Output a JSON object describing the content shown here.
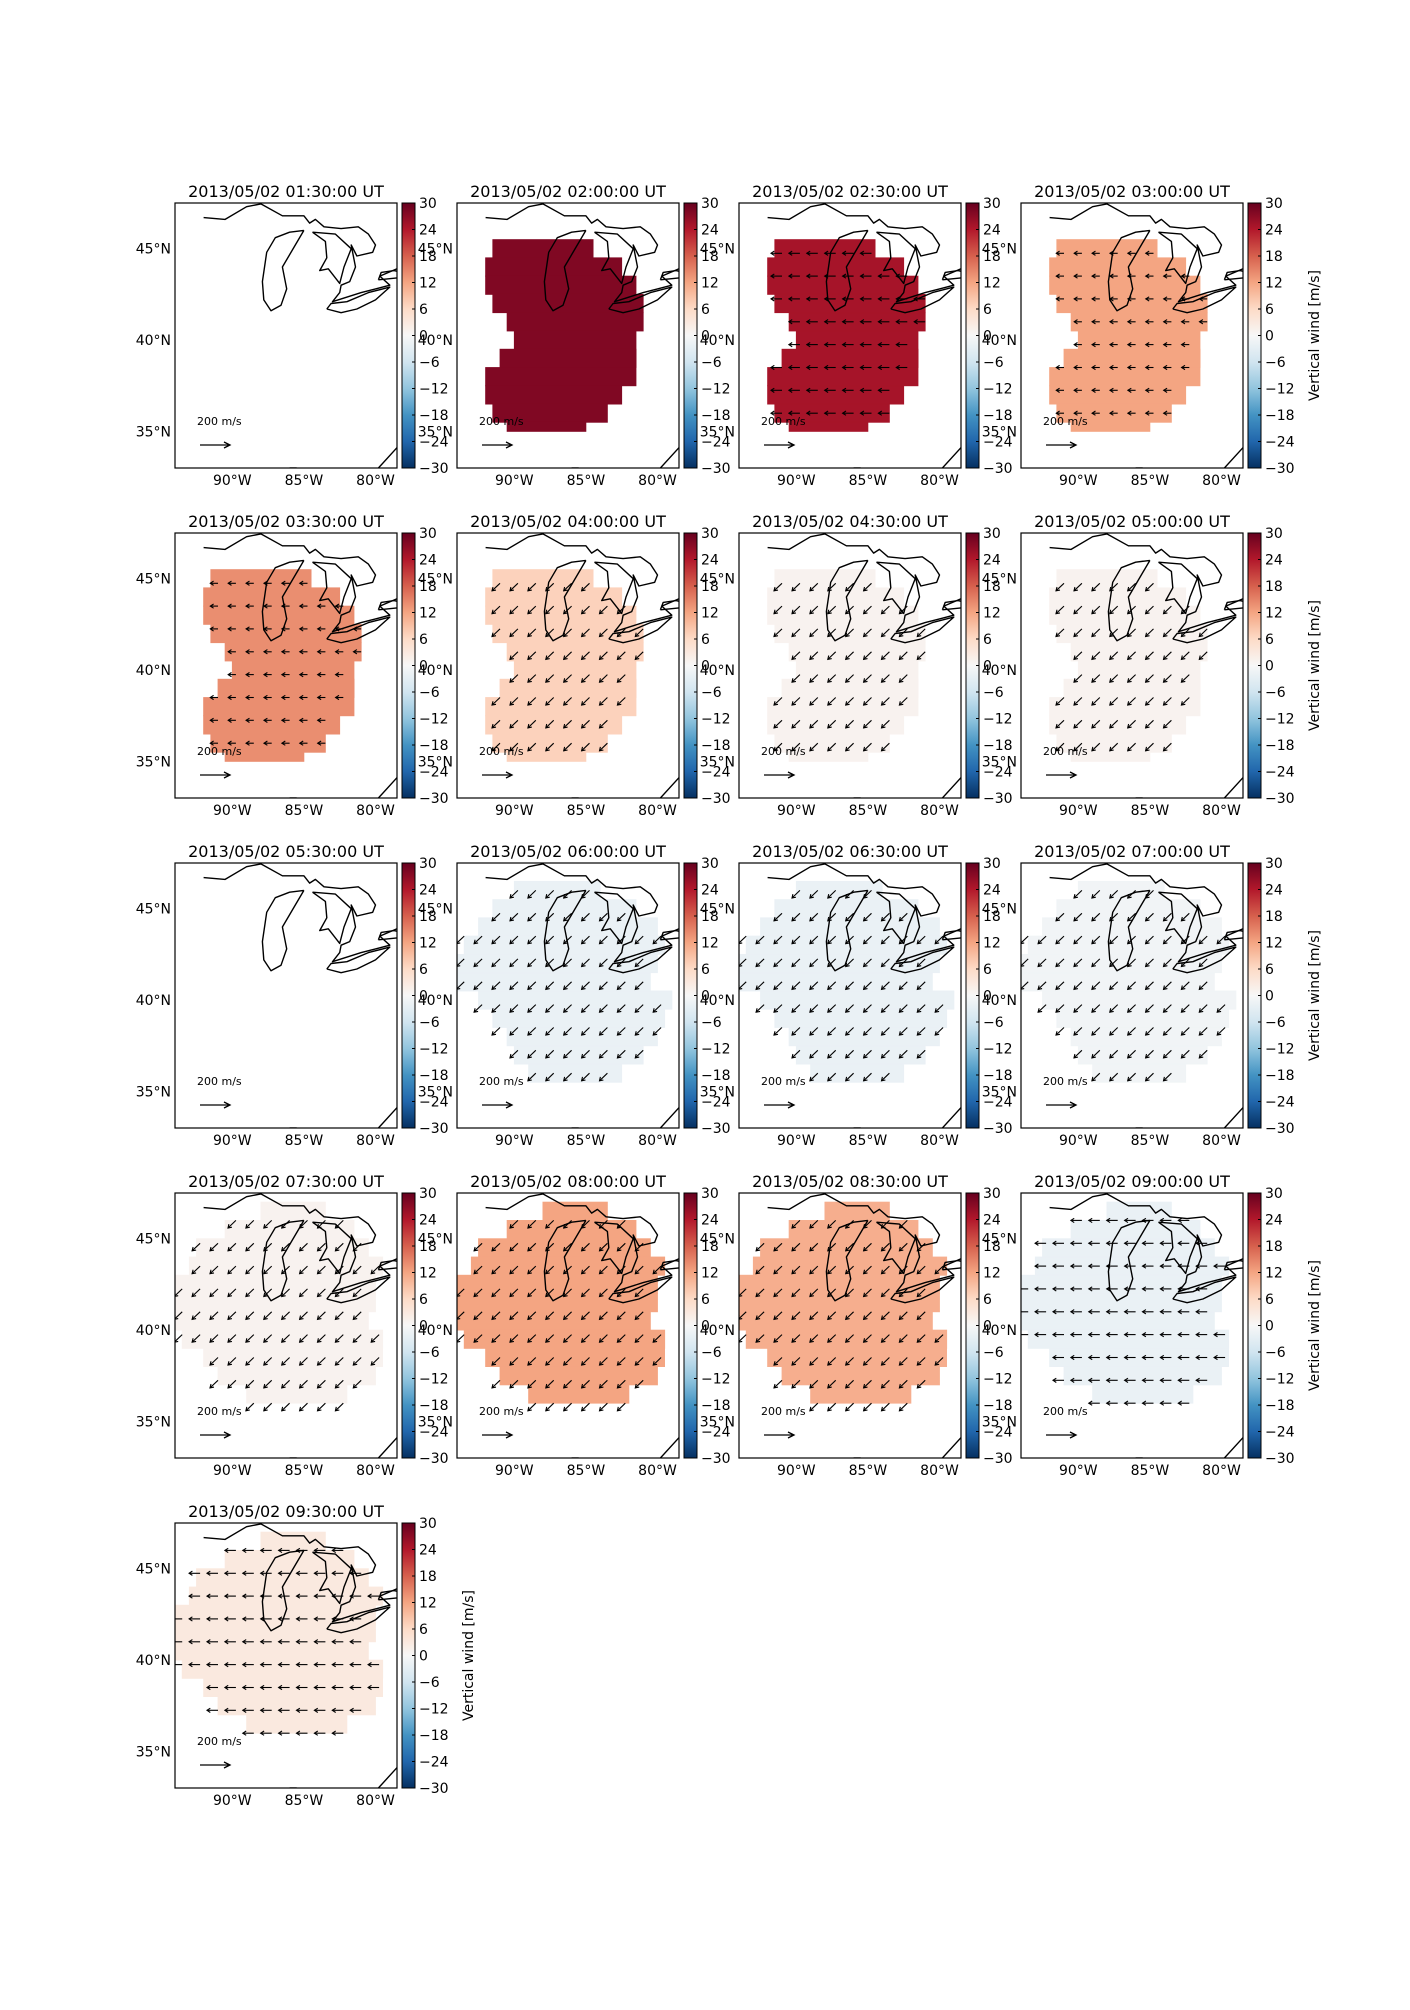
{
  "figure": {
    "colorbar_label": "Vertical wind [m/s]",
    "colorbar_ticks": [
      "30",
      "24",
      "18",
      "12",
      "6",
      "0",
      "−6",
      "−12",
      "−18",
      "−24",
      "−30"
    ],
    "lat_ticks": [
      "45°N",
      "40°N",
      "35°N"
    ],
    "lon_ticks": [
      "90°W",
      "85°W",
      "80°W"
    ],
    "reference_arrow_label": "200 m/s",
    "colormap": "RdBu_r",
    "colors": {
      "max": "#a50f26",
      "zero": "#f7f7f7",
      "min": "#053061"
    }
  },
  "chart_data": [
    {
      "type": "heatmap",
      "title": "2013/05/02 01:30:00 UT",
      "vertical_wind": null,
      "region": "none",
      "arrows": "none",
      "colorbar_label": ""
    },
    {
      "type": "heatmap",
      "title": "2013/05/02 02:00:00 UT",
      "vertical_wind": 28,
      "region": "small",
      "arrows": "none",
      "colorbar_label": ""
    },
    {
      "type": "heatmap",
      "title": "2013/05/02 02:30:00 UT",
      "vertical_wind": 25,
      "region": "small",
      "arrows": "west",
      "colorbar_label": ""
    },
    {
      "type": "heatmap",
      "title": "2013/05/02 03:00:00 UT",
      "vertical_wind": 12,
      "region": "small",
      "arrows": "west-short",
      "colorbar_label": "Vertical wind [m/s]"
    },
    {
      "type": "heatmap",
      "title": "2013/05/02 03:30:00 UT",
      "vertical_wind": 14,
      "region": "small",
      "arrows": "west-short",
      "colorbar_label": ""
    },
    {
      "type": "heatmap",
      "title": "2013/05/02 04:00:00 UT",
      "vertical_wind": 7,
      "region": "small",
      "arrows": "southwest",
      "colorbar_label": ""
    },
    {
      "type": "heatmap",
      "title": "2013/05/02 04:30:00 UT",
      "vertical_wind": 1,
      "region": "small",
      "arrows": "southwest",
      "colorbar_label": ""
    },
    {
      "type": "heatmap",
      "title": "2013/05/02 05:00:00 UT",
      "vertical_wind": 1,
      "region": "small",
      "arrows": "southwest",
      "colorbar_label": "Vertical wind [m/s]"
    },
    {
      "type": "heatmap",
      "title": "2013/05/02 05:30:00 UT",
      "vertical_wind": null,
      "region": "none",
      "arrows": "none",
      "colorbar_label": ""
    },
    {
      "type": "heatmap",
      "title": "2013/05/02 06:00:00 UT",
      "vertical_wind": -2,
      "region": "large",
      "arrows": "southwest",
      "colorbar_label": ""
    },
    {
      "type": "heatmap",
      "title": "2013/05/02 06:30:00 UT",
      "vertical_wind": -2,
      "region": "large",
      "arrows": "southwest",
      "colorbar_label": ""
    },
    {
      "type": "heatmap",
      "title": "2013/05/02 07:00:00 UT",
      "vertical_wind": -1,
      "region": "large",
      "arrows": "southwest",
      "colorbar_label": "Vertical wind [m/s]"
    },
    {
      "type": "heatmap",
      "title": "2013/05/02 07:30:00 UT",
      "vertical_wind": 1,
      "region": "wide",
      "arrows": "southwest",
      "colorbar_label": ""
    },
    {
      "type": "heatmap",
      "title": "2013/05/02 08:00:00 UT",
      "vertical_wind": 12,
      "region": "wide",
      "arrows": "southwest",
      "colorbar_label": ""
    },
    {
      "type": "heatmap",
      "title": "2013/05/02 08:30:00 UT",
      "vertical_wind": 11,
      "region": "wide",
      "arrows": "southwest",
      "colorbar_label": ""
    },
    {
      "type": "heatmap",
      "title": "2013/05/02 09:00:00 UT",
      "vertical_wind": -2,
      "region": "wide",
      "arrows": "west",
      "colorbar_label": "Vertical wind [m/s]"
    },
    {
      "type": "heatmap",
      "title": "2013/05/02 09:30:00 UT",
      "vertical_wind": 3,
      "region": "wide",
      "arrows": "west",
      "colorbar_label": "Vertical wind [m/s]"
    }
  ]
}
